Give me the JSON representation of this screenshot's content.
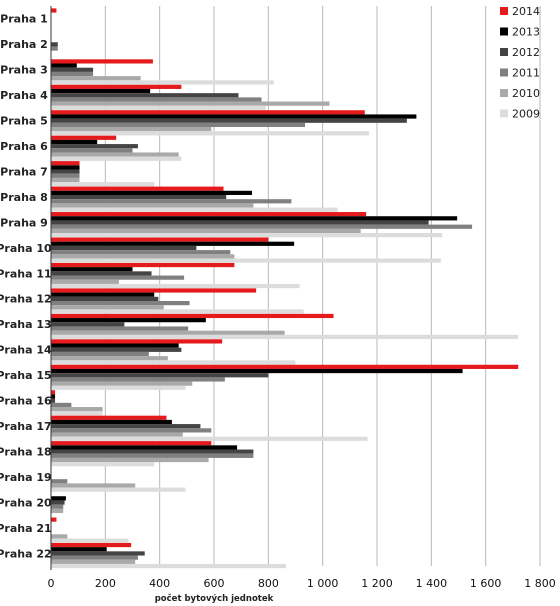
{
  "chart_data": {
    "type": "bar",
    "orientation": "horizontal",
    "categories": [
      "Praha 1",
      "Praha 2",
      "Praha 3",
      "Praha 4",
      "Praha 5",
      "Praha 6",
      "Praha 7",
      "Praha 8",
      "Praha 9",
      "Praha 10",
      "Praha 11",
      "Praha 12",
      "Praha 13",
      "Praha 14",
      "Praha 15",
      "Praha 16",
      "Praha 17",
      "Praha 18",
      "Praha 19",
      "Praha 20",
      "Praha 21",
      "Praha 22"
    ],
    "series": [
      {
        "name": "2014",
        "color": "#e41a1c",
        "values": [
          20,
          0,
          375,
          480,
          1155,
          240,
          105,
          635,
          1160,
          800,
          675,
          755,
          1040,
          630,
          1720,
          15,
          425,
          590,
          0,
          0,
          20,
          295
        ]
      },
      {
        "name": "2013",
        "color": "#000000",
        "values": [
          0,
          0,
          95,
          365,
          1345,
          170,
          105,
          740,
          1495,
          895,
          300,
          380,
          570,
          470,
          1515,
          15,
          445,
          685,
          0,
          55,
          0,
          205
        ]
      },
      {
        "name": "2012",
        "color": "#444444",
        "values": [
          0,
          25,
          155,
          690,
          1310,
          320,
          105,
          645,
          1390,
          535,
          370,
          395,
          270,
          480,
          800,
          15,
          550,
          745,
          0,
          50,
          0,
          345
        ]
      },
      {
        "name": "2011",
        "color": "#808080",
        "values": [
          0,
          25,
          155,
          775,
          935,
          300,
          105,
          885,
          1550,
          660,
          490,
          510,
          505,
          360,
          640,
          75,
          590,
          745,
          60,
          45,
          0,
          320
        ]
      },
      {
        "name": "2010",
        "color": "#a9a9a9",
        "values": [
          0,
          0,
          330,
          1025,
          590,
          470,
          105,
          745,
          1140,
          675,
          250,
          415,
          860,
          430,
          520,
          190,
          485,
          580,
          310,
          45,
          60,
          310
        ]
      },
      {
        "name": "2009",
        "color": "#dcdcdc",
        "values": [
          0,
          0,
          820,
          790,
          1170,
          480,
          380,
          1055,
          1440,
          1435,
          915,
          930,
          1720,
          900,
          495,
          190,
          1165,
          380,
          495,
          0,
          285,
          865
        ]
      }
    ],
    "xlabel": "počet bytových jednotek",
    "xlim": [
      0,
      1800
    ],
    "xticks": [
      "0",
      "200",
      "400",
      "600",
      "800",
      "1 000",
      "1 200",
      "1 400",
      "1 600",
      "1 800"
    ],
    "xtick_values": [
      0,
      200,
      400,
      600,
      800,
      1000,
      1200,
      1400,
      1600,
      1800
    ],
    "grid": "vertical",
    "legend_position": "top-right"
  }
}
